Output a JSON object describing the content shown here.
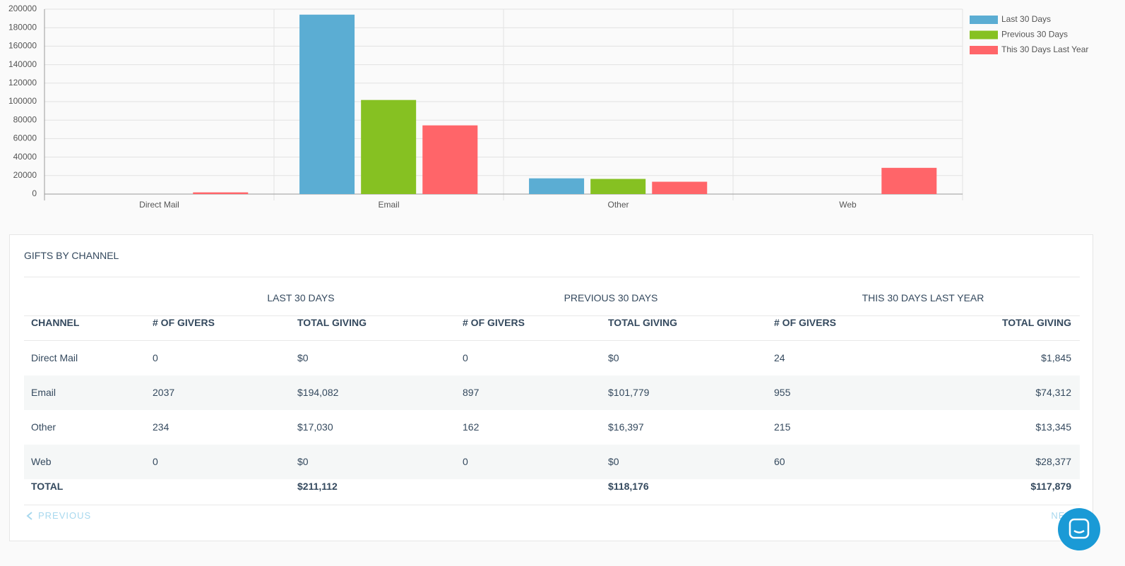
{
  "chart_data": {
    "type": "bar",
    "categories": [
      "Direct Mail",
      "Email",
      "Other",
      "Web"
    ],
    "series": [
      {
        "name": "Last 30 Days",
        "color": "#5badd3",
        "values": [
          0,
          194082,
          17030,
          0
        ]
      },
      {
        "name": "Previous 30 Days",
        "color": "#86c122",
        "values": [
          0,
          101779,
          16397,
          0
        ]
      },
      {
        "name": "This 30 Days Last Year",
        "color": "#ff6569",
        "values": [
          1845,
          74312,
          13345,
          28377
        ]
      }
    ],
    "ylim": [
      0,
      200000
    ],
    "yticks": [
      0,
      20000,
      40000,
      60000,
      80000,
      100000,
      120000,
      140000,
      160000,
      180000,
      200000
    ],
    "grid": true,
    "legend": "top-right"
  },
  "table": {
    "title": "GIFTS BY CHANNEL",
    "groups": [
      "LAST 30 DAYS",
      "PREVIOUS 30 DAYS",
      "THIS 30 DAYS LAST YEAR"
    ],
    "columns": [
      "CHANNEL",
      "# OF GIVERS",
      "TOTAL GIVING",
      "# OF GIVERS",
      "TOTAL GIVING",
      "# OF GIVERS",
      "TOTAL GIVING"
    ],
    "rows": [
      [
        "Direct Mail",
        "0",
        "$0",
        "0",
        "$0",
        "24",
        "$1,845"
      ],
      [
        "Email",
        "2037",
        "$194,082",
        "897",
        "$101,779",
        "955",
        "$74,312"
      ],
      [
        "Other",
        "234",
        "$17,030",
        "162",
        "$16,397",
        "215",
        "$13,345"
      ],
      [
        "Web",
        "0",
        "$0",
        "0",
        "$0",
        "60",
        "$28,377"
      ]
    ],
    "total": {
      "label": "TOTAL",
      "values": [
        "$211,112",
        "$118,176",
        "$117,879"
      ]
    },
    "pagination": {
      "previous": "PREVIOUS",
      "next": "NEXT"
    }
  }
}
